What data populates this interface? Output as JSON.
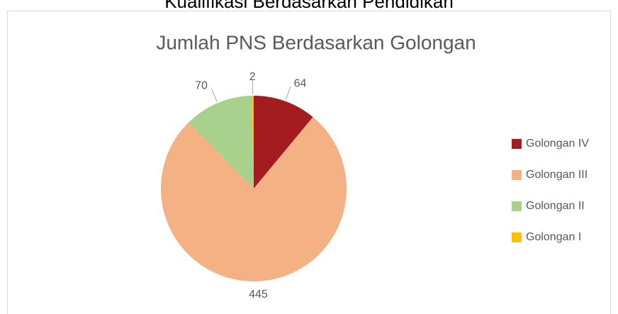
{
  "page_title": "Kualifikasi Berdasarkan Pendidikan",
  "chart_data": {
    "type": "pie",
    "title": "Jumlah PNS Berdasarkan Golongan",
    "categories": [
      "Golongan IV",
      "Golongan III",
      "Golongan II",
      "Golongan I"
    ],
    "values": [
      64,
      445,
      70,
      2
    ],
    "colors": [
      "#a31c1f",
      "#f4b183",
      "#a9d18e",
      "#ffc000"
    ],
    "legend": "right"
  }
}
